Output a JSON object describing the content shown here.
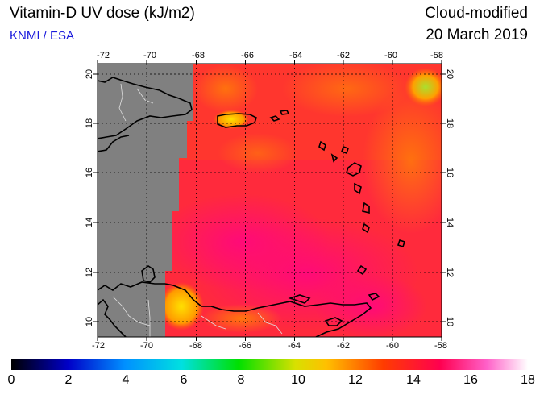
{
  "header": {
    "title": "Vitamin-D UV dose (kJ/m2)",
    "credit": "KNMI / ESA",
    "product": "Cloud-modified",
    "date": "20 March 2019"
  },
  "map": {
    "lon_ticks": [
      "-72",
      "-70",
      "-68",
      "-66",
      "-64",
      "-62",
      "-60",
      "-58"
    ],
    "lat_ticks": [
      "10",
      "12",
      "14",
      "16",
      "18",
      "20"
    ]
  },
  "colorbar": {
    "labels": [
      "0",
      "2",
      "4",
      "6",
      "8",
      "10",
      "12",
      "14",
      "16",
      "18"
    ],
    "colors": [
      "#000000",
      "#0000c8",
      "#0090ff",
      "#00e0e0",
      "#00e000",
      "#d8e000",
      "#ffc000",
      "#ff3c00",
      "#ff0050",
      "#ff60c8",
      "#ffffff"
    ]
  }
}
